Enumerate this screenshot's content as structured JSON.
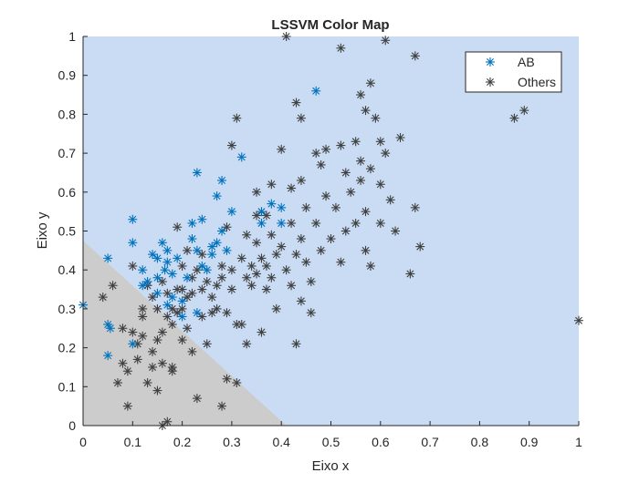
{
  "chart_data": {
    "type": "scatter",
    "title": "LSSVM Color Map",
    "xlabel": "Eixo x",
    "ylabel": "Eixo y",
    "xlim": [
      0,
      1
    ],
    "ylim": [
      0,
      1
    ],
    "xticks": [
      "0",
      "0.1",
      "0.2",
      "0.3",
      "0.4",
      "0.5",
      "0.6",
      "0.7",
      "0.8",
      "0.9",
      "1"
    ],
    "yticks": [
      "0",
      "0.1",
      "0.2",
      "0.3",
      "0.4",
      "0.5",
      "0.6",
      "0.7",
      "0.8",
      "0.9",
      "1"
    ],
    "grid": false,
    "legend_position": "top-right",
    "decision_regions": [
      {
        "class": "Others",
        "color": "#cccccc",
        "polygon": [
          [
            0,
            0
          ],
          [
            0,
            0.475
          ],
          [
            0.41,
            0
          ]
        ]
      },
      {
        "class": "AB",
        "color": "#c9dcf4",
        "polygon": "rest of axes"
      }
    ],
    "series": [
      {
        "name": "AB",
        "color": "#0072bd",
        "marker": "asterisk",
        "points": [
          [
            0.0,
            0.31
          ],
          [
            0.05,
            0.43
          ],
          [
            0.05,
            0.26
          ],
          [
            0.055,
            0.25
          ],
          [
            0.05,
            0.18
          ],
          [
            0.1,
            0.21
          ],
          [
            0.1,
            0.47
          ],
          [
            0.1,
            0.53
          ],
          [
            0.12,
            0.4
          ],
          [
            0.12,
            0.36
          ],
          [
            0.13,
            0.37
          ],
          [
            0.14,
            0.44
          ],
          [
            0.15,
            0.43
          ],
          [
            0.15,
            0.38
          ],
          [
            0.15,
            0.34
          ],
          [
            0.16,
            0.47
          ],
          [
            0.165,
            0.4
          ],
          [
            0.17,
            0.45
          ],
          [
            0.17,
            0.42
          ],
          [
            0.17,
            0.31
          ],
          [
            0.18,
            0.39
          ],
          [
            0.18,
            0.33
          ],
          [
            0.19,
            0.43
          ],
          [
            0.2,
            0.28
          ],
          [
            0.2,
            0.32
          ],
          [
            0.21,
            0.38
          ],
          [
            0.22,
            0.52
          ],
          [
            0.22,
            0.48
          ],
          [
            0.23,
            0.45
          ],
          [
            0.23,
            0.65
          ],
          [
            0.24,
            0.53
          ],
          [
            0.24,
            0.41
          ],
          [
            0.25,
            0.4
          ],
          [
            0.26,
            0.44
          ],
          [
            0.26,
            0.46
          ],
          [
            0.27,
            0.59
          ],
          [
            0.27,
            0.47
          ],
          [
            0.28,
            0.63
          ],
          [
            0.28,
            0.5
          ],
          [
            0.29,
            0.45
          ],
          [
            0.3,
            0.55
          ],
          [
            0.32,
            0.69
          ],
          [
            0.36,
            0.55
          ],
          [
            0.36,
            0.52
          ],
          [
            0.38,
            0.57
          ],
          [
            0.4,
            0.56
          ],
          [
            0.4,
            0.52
          ],
          [
            0.47,
            0.86
          ],
          [
            0.23,
            0.29
          ]
        ]
      },
      {
        "name": "Others",
        "color": "#404040",
        "marker": "asterisk",
        "points": [
          [
            0.04,
            0.33
          ],
          [
            0.06,
            0.36
          ],
          [
            0.07,
            0.11
          ],
          [
            0.08,
            0.25
          ],
          [
            0.08,
            0.16
          ],
          [
            0.09,
            0.14
          ],
          [
            0.09,
            0.05
          ],
          [
            0.1,
            0.41
          ],
          [
            0.1,
            0.24
          ],
          [
            0.11,
            0.21
          ],
          [
            0.11,
            0.17
          ],
          [
            0.12,
            0.3
          ],
          [
            0.12,
            0.28
          ],
          [
            0.12,
            0.23
          ],
          [
            0.13,
            0.11
          ],
          [
            0.13,
            0.36
          ],
          [
            0.14,
            0.33
          ],
          [
            0.14,
            0.19
          ],
          [
            0.14,
            0.15
          ],
          [
            0.15,
            0.22
          ],
          [
            0.15,
            0.09
          ],
          [
            0.15,
            0.3
          ],
          [
            0.16,
            0.37
          ],
          [
            0.16,
            0.24
          ],
          [
            0.16,
            0.16
          ],
          [
            0.16,
            0.0
          ],
          [
            0.17,
            0.01
          ],
          [
            0.17,
            0.34
          ],
          [
            0.17,
            0.28
          ],
          [
            0.18,
            0.3
          ],
          [
            0.18,
            0.26
          ],
          [
            0.18,
            0.15
          ],
          [
            0.18,
            0.14
          ],
          [
            0.19,
            0.51
          ],
          [
            0.19,
            0.35
          ],
          [
            0.19,
            0.29
          ],
          [
            0.2,
            0.41
          ],
          [
            0.2,
            0.35
          ],
          [
            0.2,
            0.3
          ],
          [
            0.2,
            0.22
          ],
          [
            0.21,
            0.45
          ],
          [
            0.21,
            0.33
          ],
          [
            0.21,
            0.25
          ],
          [
            0.22,
            0.38
          ],
          [
            0.22,
            0.34
          ],
          [
            0.22,
            0.19
          ],
          [
            0.23,
            0.07
          ],
          [
            0.23,
            0.4
          ],
          [
            0.24,
            0.44
          ],
          [
            0.24,
            0.35
          ],
          [
            0.24,
            0.28
          ],
          [
            0.25,
            0.37
          ],
          [
            0.25,
            0.21
          ],
          [
            0.26,
            0.33
          ],
          [
            0.27,
            0.3
          ],
          [
            0.27,
            0.36
          ],
          [
            0.28,
            0.05
          ],
          [
            0.28,
            0.41
          ],
          [
            0.28,
            0.38
          ],
          [
            0.29,
            0.51
          ],
          [
            0.29,
            0.29
          ],
          [
            0.29,
            0.12
          ],
          [
            0.3,
            0.72
          ],
          [
            0.3,
            0.4
          ],
          [
            0.3,
            0.35
          ],
          [
            0.31,
            0.79
          ],
          [
            0.31,
            0.26
          ],
          [
            0.31,
            0.11
          ],
          [
            0.32,
            0.43
          ],
          [
            0.32,
            0.26
          ],
          [
            0.33,
            0.38
          ],
          [
            0.33,
            0.49
          ],
          [
            0.33,
            0.21
          ],
          [
            0.34,
            0.41
          ],
          [
            0.34,
            0.36
          ],
          [
            0.35,
            0.47
          ],
          [
            0.35,
            0.39
          ],
          [
            0.35,
            0.6
          ],
          [
            0.36,
            0.43
          ],
          [
            0.36,
            0.24
          ],
          [
            0.37,
            0.54
          ],
          [
            0.37,
            0.41
          ],
          [
            0.37,
            0.35
          ],
          [
            0.38,
            0.62
          ],
          [
            0.38,
            0.49
          ],
          [
            0.38,
            0.38
          ],
          [
            0.39,
            0.3
          ],
          [
            0.39,
            0.44
          ],
          [
            0.4,
            0.71
          ],
          [
            0.4,
            0.46
          ],
          [
            0.41,
            1.0
          ],
          [
            0.41,
            0.4
          ],
          [
            0.42,
            0.52
          ],
          [
            0.42,
            0.36
          ],
          [
            0.42,
            0.61
          ],
          [
            0.43,
            0.83
          ],
          [
            0.43,
            0.44
          ],
          [
            0.43,
            0.21
          ],
          [
            0.44,
            0.79
          ],
          [
            0.44,
            0.48
          ],
          [
            0.44,
            0.63
          ],
          [
            0.45,
            0.42
          ],
          [
            0.45,
            0.56
          ],
          [
            0.46,
            0.29
          ],
          [
            0.46,
            0.37
          ],
          [
            0.47,
            0.7
          ],
          [
            0.47,
            0.52
          ],
          [
            0.48,
            0.67
          ],
          [
            0.48,
            0.45
          ],
          [
            0.49,
            0.59
          ],
          [
            0.49,
            0.71
          ],
          [
            0.5,
            0.48
          ],
          [
            0.51,
            0.56
          ],
          [
            0.52,
            0.97
          ],
          [
            0.52,
            0.72
          ],
          [
            0.52,
            0.42
          ],
          [
            0.53,
            0.65
          ],
          [
            0.53,
            0.5
          ],
          [
            0.54,
            0.6
          ],
          [
            0.55,
            0.73
          ],
          [
            0.55,
            0.52
          ],
          [
            0.56,
            0.85
          ],
          [
            0.56,
            0.68
          ],
          [
            0.56,
            0.63
          ],
          [
            0.57,
            0.81
          ],
          [
            0.57,
            0.55
          ],
          [
            0.58,
            0.66
          ],
          [
            0.58,
            0.41
          ],
          [
            0.59,
            0.79
          ],
          [
            0.6,
            0.73
          ],
          [
            0.6,
            0.62
          ],
          [
            0.6,
            0.52
          ],
          [
            0.61,
            0.99
          ],
          [
            0.62,
            0.58
          ],
          [
            0.63,
            0.5
          ],
          [
            0.64,
            0.74
          ],
          [
            0.66,
            0.39
          ],
          [
            0.67,
            0.56
          ],
          [
            0.67,
            0.95
          ],
          [
            0.68,
            0.46
          ],
          [
            0.87,
            0.79
          ],
          [
            0.89,
            0.81
          ],
          [
            1.0,
            0.27
          ],
          [
            0.58,
            0.88
          ],
          [
            0.57,
            0.45
          ],
          [
            0.61,
            0.7
          ],
          [
            0.35,
            0.54
          ],
          [
            0.26,
            0.29
          ],
          [
            0.44,
            0.32
          ]
        ]
      }
    ]
  }
}
